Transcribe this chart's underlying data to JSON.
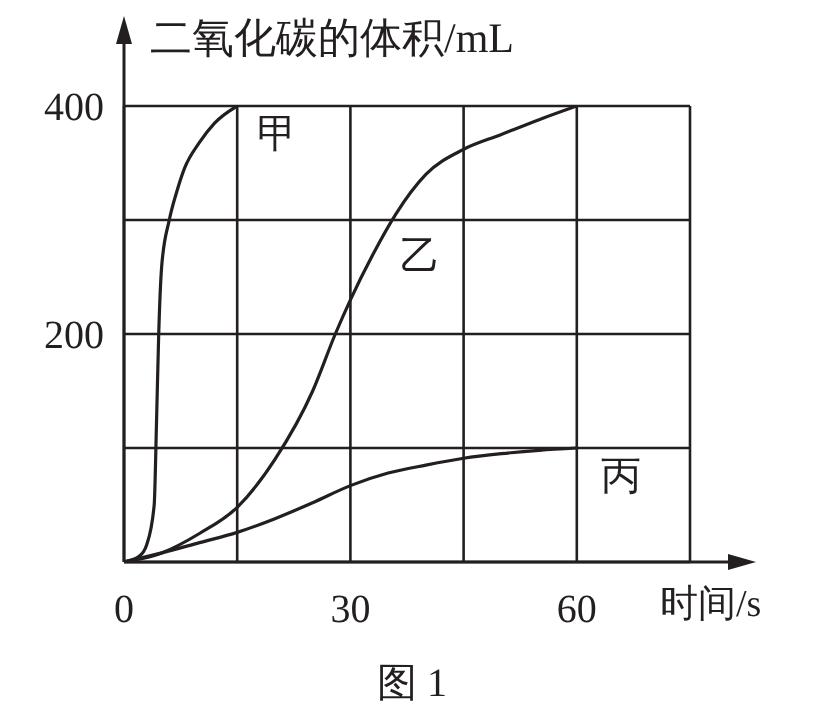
{
  "chart_data": {
    "type": "line",
    "ylabel": "二氧化碳的体积/mL",
    "xlabel": "时间/s",
    "annotations": [
      "图 1"
    ],
    "xlim": [
      0,
      75
    ],
    "xticks": [
      0,
      {
        "value": 15,
        "label": null
      },
      30,
      {
        "value": 45,
        "label": null
      },
      60,
      {
        "value": 75,
        "label": null
      }
    ],
    "ylim": [
      0,
      400
    ],
    "yticks": [
      {
        "value": 0,
        "label": null
      },
      {
        "value": 100,
        "label": null
      },
      200,
      {
        "value": 300,
        "label": null
      },
      400
    ],
    "grid": true,
    "marker": "none",
    "line_style": "solid",
    "series": [
      {
        "name": "甲",
        "color": "#231f20",
        "x": [
          0,
          2,
          3,
          4,
          4.3,
          4.6,
          5,
          6,
          7,
          8,
          10,
          12,
          15
        ],
        "values": [
          0,
          5,
          15,
          50,
          120,
          200,
          260,
          300,
          325,
          345,
          368,
          385,
          400
        ]
      },
      {
        "name": "乙",
        "color": "#231f20",
        "x": [
          0,
          5,
          10,
          15,
          20,
          25,
          28,
          30,
          33,
          36,
          40,
          45,
          50,
          55,
          60
        ],
        "values": [
          0,
          8,
          25,
          48,
          90,
          150,
          200,
          230,
          270,
          305,
          340,
          362,
          375,
          388,
          400
        ]
      },
      {
        "name": "丙",
        "color": "#231f20",
        "x": [
          0,
          5,
          10,
          15,
          20,
          25,
          30,
          35,
          40,
          45,
          50,
          55,
          60
        ],
        "values": [
          0,
          8,
          17,
          26,
          38,
          52,
          67,
          78,
          85,
          91,
          95,
          98,
          100
        ]
      }
    ]
  }
}
